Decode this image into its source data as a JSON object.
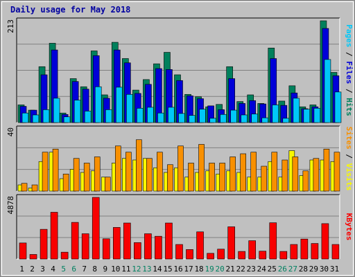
{
  "chart_data": {
    "type": "bar",
    "title": "Daily usage for May 2018",
    "categories": [
      "1",
      "2",
      "3",
      "4",
      "5",
      "6",
      "7",
      "8",
      "9",
      "10",
      "11",
      "12",
      "13",
      "14",
      "15",
      "16",
      "17",
      "18",
      "19",
      "20",
      "21",
      "22",
      "23",
      "24",
      "25",
      "26",
      "27",
      "28",
      "29",
      "30",
      "31"
    ],
    "weekend_days": [
      5,
      6,
      12,
      13,
      19,
      20,
      26,
      27
    ],
    "colors": {
      "hits": "#00805c",
      "files": "#0000d8",
      "pages": "#00c8f8",
      "visits": "#f8f800",
      "sites": "#f89000",
      "kbytes": "#f80000",
      "weekday_label": "#000000",
      "weekend_label": "#008060"
    },
    "panels": [
      {
        "id": "top",
        "ymax_label": "213",
        "ylim": [
          0,
          213
        ],
        "right_labels": [
          {
            "text": "Pages",
            "color": "#00c8f8"
          },
          {
            "text": " / ",
            "color": "#000000"
          },
          {
            "text": "Files",
            "color": "#0000d8"
          },
          {
            "text": " / ",
            "color": "#000000"
          },
          {
            "text": "Hits",
            "color": "#00805c"
          }
        ],
        "series": [
          {
            "name": "Hits",
            "color": "#00805c",
            "values": [
              37,
              26,
              117,
              166,
              20,
              92,
              75,
              150,
              58,
              168,
              134,
              68,
              90,
              123,
              147,
              100,
              59,
              54,
              33,
              38,
              117,
              44,
              58,
              40,
              156,
              45,
              77,
              33,
              37,
              213,
              105
            ]
          },
          {
            "name": "Files",
            "color": "#0000d8",
            "values": [
              34,
              26,
              100,
              152,
              17,
              86,
              70,
              140,
              51,
              152,
              125,
              61,
              80,
              113,
              111,
              88,
              56,
              50,
              35,
              27,
              92,
              40,
              46,
              39,
              134,
              36,
              62,
              29,
              33,
              197,
              98
            ]
          },
          {
            "name": "Pages",
            "color": "#00c8f8",
            "values": [
              20,
              16,
              27,
              51,
              12,
              47,
              24,
              75,
              27,
              74,
              59,
              30,
              32,
              20,
              32,
              19,
              15,
              28,
              9,
              17,
              26,
              16,
              18,
              10,
              37,
              9,
              51,
              28,
              30,
              132,
              64
            ]
          }
        ]
      },
      {
        "id": "mid",
        "ymax_label": "40",
        "ylim": [
          0,
          40
        ],
        "right_labels": [
          {
            "text": "Sites",
            "color": "#f89000"
          },
          {
            "text": " / ",
            "color": "#000000"
          },
          {
            "text": "Visits",
            "color": "#f8f800"
          }
        ],
        "series": [
          {
            "name": "Visits",
            "color": "#f8f800",
            "values": [
              4,
              2,
              19,
              25,
              8,
              14,
              12,
              13,
              9,
              18,
              21,
              20,
              21,
              15,
              12,
              15,
              9,
              12,
              13,
              11,
              13,
              12,
              9,
              9,
              19,
              9,
              26,
              10,
              20,
              20,
              19
            ]
          },
          {
            "name": "Sites",
            "color": "#f89000",
            "values": [
              5,
              4,
              25,
              27,
              11,
              21,
              18,
              22,
              9,
              29,
              25,
              33,
              21,
              25,
              17,
              29,
              18,
              30,
              18,
              18,
              22,
              24,
              25,
              16,
              25,
              20,
              22,
              13,
              21,
              27,
              25
            ]
          }
        ]
      },
      {
        "id": "bot",
        "ymax_label": "4878",
        "ylim": [
          0,
          4878
        ],
        "right_labels": [
          {
            "text": "KBytes",
            "color": "#f80000"
          }
        ],
        "series": [
          {
            "name": "KBytes",
            "color": "#f80000",
            "values": [
              1269,
              360,
              2350,
              3700,
              540,
              2900,
              2000,
              4878,
              1600,
              2500,
              2850,
              1300,
              2000,
              1800,
              2850,
              1150,
              750,
              2150,
              450,
              780,
              2550,
              600,
              1450,
              620,
              2870,
              600,
              1150,
              1580,
              1230,
              2800,
              1150
            ]
          }
        ]
      }
    ]
  }
}
